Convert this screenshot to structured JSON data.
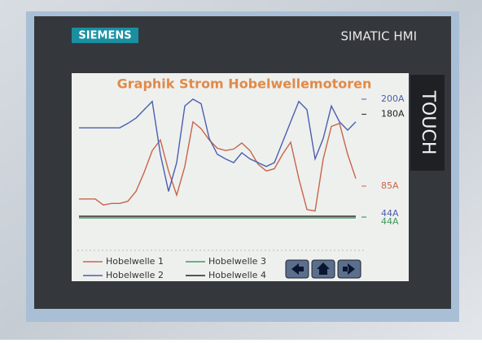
{
  "device": {
    "brand": "SIEMENS",
    "model": "SIMATIC HMI",
    "label": "TOUCH"
  },
  "chart_data": {
    "type": "line",
    "title": "Graphik Strom Hobelwellemotoren",
    "ylim": [
      0,
      200
    ],
    "series": [
      {
        "name": "Hobelwelle 1",
        "color": "#c8654a",
        "values": [
          68,
          68,
          68,
          60,
          62,
          62,
          65,
          78,
          103,
          132,
          146,
          105,
          73,
          111,
          170,
          161,
          146,
          135,
          132,
          134,
          142,
          132,
          114,
          105,
          108,
          127,
          143,
          95,
          54,
          52,
          121,
          164,
          168,
          127,
          95
        ]
      },
      {
        "name": "Hobelwelle 2",
        "color": "#4a5fae",
        "values": [
          162,
          162,
          162,
          162,
          162,
          162,
          168,
          175,
          186,
          197,
          127,
          78,
          116,
          191,
          200,
          194,
          148,
          127,
          121,
          116,
          129,
          121,
          116,
          111,
          116,
          143,
          170,
          197,
          186,
          121,
          148,
          191,
          170,
          159,
          170
        ]
      },
      {
        "name": "Hobelwelle 3",
        "color": "#3f9a5a",
        "values": [
          43,
          43,
          43,
          43,
          43,
          43,
          43,
          43,
          43,
          43,
          43,
          43,
          43,
          43,
          43,
          43,
          43,
          43,
          43,
          43,
          43,
          43,
          43,
          43,
          43,
          43,
          43,
          43,
          43,
          43,
          43,
          43,
          43,
          43,
          43
        ]
      },
      {
        "name": "Hobelwelle 4",
        "color": "#222222",
        "values": [
          45,
          45,
          45,
          45,
          45,
          45,
          45,
          45,
          45,
          45,
          45,
          45,
          45,
          45,
          45,
          45,
          45,
          45,
          45,
          45,
          45,
          45,
          45,
          45,
          45,
          45,
          45,
          45,
          45,
          45,
          45,
          45,
          45,
          45,
          45
        ]
      }
    ],
    "annotations": [
      {
        "value": 200,
        "label": "200A",
        "color": "#4a5fae"
      },
      {
        "value": 180,
        "label": "180A",
        "color": "#222222"
      },
      {
        "value": 85,
        "label": "85A",
        "color": "#c8654a"
      },
      {
        "value": 44,
        "label": "44A",
        "color": "#4a5fae"
      },
      {
        "value": 44,
        "label": "44A",
        "color": "#3f9a5a"
      }
    ]
  }
}
